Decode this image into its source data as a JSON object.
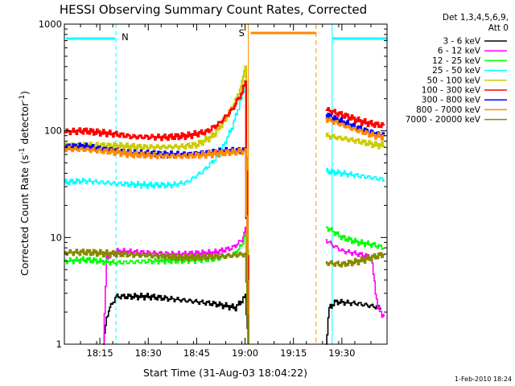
{
  "chart_data": {
    "type": "line",
    "title": "HESSI Observing Summary Count Rates, Corrected",
    "xlabel": "Start Time (31-Aug-03 18:04:22)",
    "ylabel_main": "Corrected Count Rate (s",
    "ylabel_sup1": "-1",
    "ylabel_mid": " detector",
    "ylabel_sup2": "-1",
    "ylabel_end": ")",
    "y_scale": "log",
    "ylim": [
      1,
      1000
    ],
    "xlim": [
      "18:04",
      "19:44"
    ],
    "x_ticks": [
      "18:15",
      "18:30",
      "18:45",
      "19:00",
      "19:15",
      "19:30"
    ],
    "y_ticks": [
      "1",
      "10",
      "100",
      "1000"
    ],
    "grid": false,
    "legend_position": "right",
    "legend_header": [
      "Det 1,3,4,5,6,9,",
      "Att 0"
    ],
    "timestamp": "1-Feb-2010 18:24",
    "annotations": {
      "night_marker": "N",
      "saa_marker": "S",
      "night_intervals": [
        [
          "18:04",
          "18:20"
        ],
        [
          "19:27",
          "19:44"
        ]
      ],
      "saa_interval": [
        "19:01",
        "19:22"
      ]
    },
    "series": [
      {
        "name": "3 - 6 keV",
        "color": "#000000",
        "segments": [
          [
            [
              "18:16",
              1
            ],
            [
              "18:17",
              1.8
            ],
            [
              "18:18",
              2.2
            ],
            [
              "18:20",
              2.8
            ],
            [
              "18:30",
              2.8
            ],
            [
              "18:40",
              2.6
            ],
            [
              "18:50",
              2.4
            ],
            [
              "18:57",
              2.2
            ],
            [
              "19:00",
              2.8
            ],
            [
              "19:01",
              1
            ]
          ],
          [
            [
              "19:25",
              1
            ],
            [
              "19:26",
              2.2
            ],
            [
              "19:28",
              2.5
            ],
            [
              "19:35",
              2.4
            ],
            [
              "19:42",
              2.2
            ]
          ]
        ]
      },
      {
        "name": "6 - 12 keV",
        "color": "#ff00ff",
        "segments": [
          [
            [
              "18:16",
              1
            ],
            [
              "18:17",
              6.5
            ],
            [
              "18:20",
              7.4
            ],
            [
              "18:30",
              7.2
            ],
            [
              "18:40",
              7.0
            ],
            [
              "18:50",
              7.2
            ],
            [
              "18:56",
              8.0
            ],
            [
              "18:59",
              9.5
            ],
            [
              "19:00",
              12
            ],
            [
              "19:01",
              1
            ]
          ],
          [
            [
              "19:25",
              9.5
            ],
            [
              "19:27",
              8.5
            ],
            [
              "19:30",
              7.5
            ],
            [
              "19:35",
              7.0
            ],
            [
              "19:39",
              6.5
            ],
            [
              "19:41",
              2.2
            ],
            [
              "19:43",
              1.8
            ]
          ]
        ]
      },
      {
        "name": "12 - 25 keV",
        "color": "#00ff00",
        "segments": [
          [
            [
              "18:04",
              6.0
            ],
            [
              "18:10",
              6.2
            ],
            [
              "18:20",
              5.8
            ],
            [
              "18:30",
              6.0
            ],
            [
              "18:40",
              6.1
            ],
            [
              "18:50",
              6.2
            ],
            [
              "18:56",
              6.8
            ],
            [
              "18:59",
              8.5
            ],
            [
              "19:00",
              11
            ],
            [
              "19:01",
              1
            ]
          ],
          [
            [
              "19:25",
              12.5
            ],
            [
              "19:27",
              11.5
            ],
            [
              "19:30",
              10.0
            ],
            [
              "19:35",
              9.0
            ],
            [
              "19:40",
              8.5
            ],
            [
              "19:43",
              8.0
            ]
          ]
        ]
      },
      {
        "name": "25 - 50 keV",
        "color": "#00ffff",
        "segments": [
          [
            [
              "18:04",
              33
            ],
            [
              "18:10",
              34
            ],
            [
              "18:15",
              33
            ],
            [
              "18:20",
              32
            ],
            [
              "18:30",
              31
            ],
            [
              "18:37",
              31
            ],
            [
              "18:42",
              33
            ],
            [
              "18:47",
              42
            ],
            [
              "18:52",
              60
            ],
            [
              "18:56",
              110
            ],
            [
              "18:59",
              210
            ],
            [
              "19:00",
              310
            ],
            [
              "19:01",
              1
            ]
          ],
          [
            [
              "19:25",
              42
            ],
            [
              "19:30",
              40
            ],
            [
              "19:35",
              38
            ],
            [
              "19:40",
              36
            ],
            [
              "19:43",
              35
            ]
          ]
        ]
      },
      {
        "name": "50 - 100 keV",
        "color": "#cccc00",
        "segments": [
          [
            [
              "18:04",
              73
            ],
            [
              "18:10",
              74
            ],
            [
              "18:20",
              72
            ],
            [
              "18:30",
              70
            ],
            [
              "18:40",
              71
            ],
            [
              "18:45",
              74
            ],
            [
              "18:50",
              90
            ],
            [
              "18:54",
              130
            ],
            [
              "18:57",
              190
            ],
            [
              "18:59",
              280
            ],
            [
              "19:00",
              420
            ],
            [
              "19:01",
              1
            ]
          ],
          [
            [
              "19:25",
              90
            ],
            [
              "19:30",
              85
            ],
            [
              "19:35",
              80
            ],
            [
              "19:40",
              74
            ],
            [
              "19:43",
              73
            ]
          ]
        ]
      },
      {
        "name": "100 - 300 keV",
        "color": "#ff0000",
        "segments": [
          [
            [
              "18:04",
              98
            ],
            [
              "18:10",
              100
            ],
            [
              "18:20",
              93
            ],
            [
              "18:25",
              88
            ],
            [
              "18:35",
              87
            ],
            [
              "18:42",
              90
            ],
            [
              "18:48",
              98
            ],
            [
              "18:52",
              118
            ],
            [
              "18:56",
              160
            ],
            [
              "18:59",
              230
            ],
            [
              "19:00",
              290
            ],
            [
              "19:01",
              1
            ]
          ],
          [
            [
              "19:25",
              158
            ],
            [
              "19:28",
              148
            ],
            [
              "19:32",
              135
            ],
            [
              "19:36",
              122
            ],
            [
              "19:40",
              115
            ],
            [
              "19:43",
              112
            ]
          ]
        ]
      },
      {
        "name": "300 - 800 keV",
        "color": "#0000ff",
        "segments": [
          [
            [
              "18:04",
              70
            ],
            [
              "18:10",
              72
            ],
            [
              "18:15",
              68
            ],
            [
              "18:20",
              66
            ],
            [
              "18:25",
              62
            ],
            [
              "18:35",
              60
            ],
            [
              "18:42",
              60
            ],
            [
              "18:48",
              63
            ],
            [
              "18:53",
              65
            ],
            [
              "18:58",
              65
            ],
            [
              "19:00",
              65
            ],
            [
              "19:01",
              1
            ]
          ],
          [
            [
              "19:25",
              140
            ],
            [
              "19:28",
              128
            ],
            [
              "19:32",
              115
            ],
            [
              "19:36",
              104
            ],
            [
              "19:40",
              95
            ],
            [
              "19:43",
              92
            ]
          ]
        ]
      },
      {
        "name": "800 - 7000 keV",
        "color": "#ff8800",
        "segments": [
          [
            [
              "18:04",
              68
            ],
            [
              "18:10",
              67
            ],
            [
              "18:15",
              65
            ],
            [
              "18:20",
              63
            ],
            [
              "18:25",
              60
            ],
            [
              "18:35",
              58
            ],
            [
              "18:42",
              58
            ],
            [
              "18:48",
              60
            ],
            [
              "18:53",
              62
            ],
            [
              "18:58",
              64
            ],
            [
              "19:00",
              64
            ],
            [
              "19:01",
              1
            ]
          ],
          [
            [
              "19:25",
              130
            ],
            [
              "19:28",
              120
            ],
            [
              "19:32",
              108
            ],
            [
              "19:36",
              98
            ],
            [
              "19:40",
              90
            ],
            [
              "19:43",
              88
            ]
          ]
        ]
      },
      {
        "name": "7000 - 20000 keV",
        "color": "#888800",
        "segments": [
          [
            [
              "18:04",
              7.2
            ],
            [
              "18:10",
              7.3
            ],
            [
              "18:20",
              7.0
            ],
            [
              "18:30",
              6.8
            ],
            [
              "18:40",
              6.5
            ],
            [
              "18:50",
              6.6
            ],
            [
              "18:56",
              6.8
            ],
            [
              "19:00",
              7.0
            ],
            [
              "19:01",
              1
            ]
          ],
          [
            [
              "19:25",
              5.8
            ],
            [
              "19:30",
              5.6
            ],
            [
              "19:35",
              6.0
            ],
            [
              "19:40",
              6.6
            ],
            [
              "19:43",
              7.0
            ]
          ]
        ]
      }
    ]
  },
  "colors": {
    "night_line": "#00ffff",
    "saa_line": "#ff8800",
    "axis": "#000000",
    "background": "#ffffff"
  }
}
